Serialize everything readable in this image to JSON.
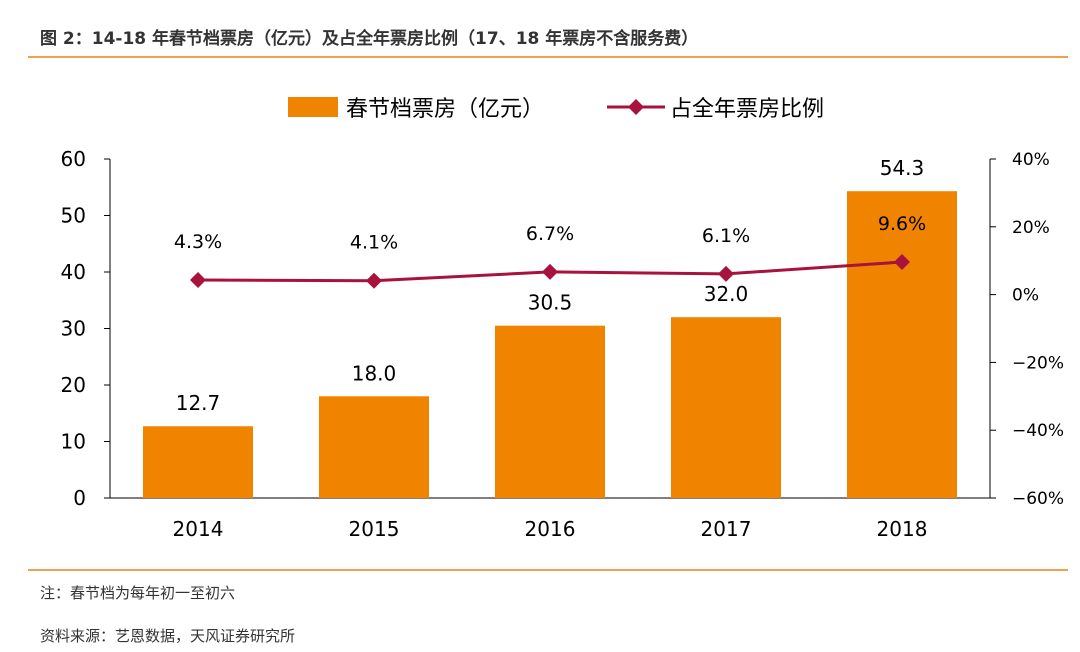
{
  "title": "图 2：14-18 年春节档票房（亿元）及占全年票房比例（17、18 年票房不含服务费）",
  "note": "注：春节档为每年初一至初六",
  "source": "资料来源：艺恩数据，天风证券研究所",
  "chart_data": {
    "type": "bar+line",
    "categories": [
      "2014",
      "2015",
      "2016",
      "2017",
      "2018"
    ],
    "series": [
      {
        "name": "春节档票房（亿元）",
        "type": "bar",
        "axis": "left",
        "color": "#f08300",
        "values": [
          12.7,
          18.0,
          30.5,
          32.0,
          54.3
        ],
        "labels": [
          "12.7",
          "18.0",
          "30.5",
          "32.0",
          "54.3"
        ]
      },
      {
        "name": "占全年票房比例",
        "type": "line",
        "axis": "right",
        "color": "#a8123c",
        "values": [
          4.3,
          4.1,
          6.7,
          6.1,
          9.6
        ],
        "labels": [
          "4.3%",
          "4.1%",
          "6.7%",
          "6.1%",
          "9.6%"
        ]
      }
    ],
    "left_axis": {
      "ylim": [
        0,
        60
      ],
      "ticks": [
        "0",
        "10",
        "20",
        "30",
        "40",
        "50",
        "60"
      ]
    },
    "right_axis": {
      "ylim": [
        -60,
        40
      ],
      "ticks": [
        "-60%",
        "-40%",
        "-20%",
        "0%",
        "20%",
        "40%"
      ]
    },
    "legend": "top",
    "grid": false
  }
}
